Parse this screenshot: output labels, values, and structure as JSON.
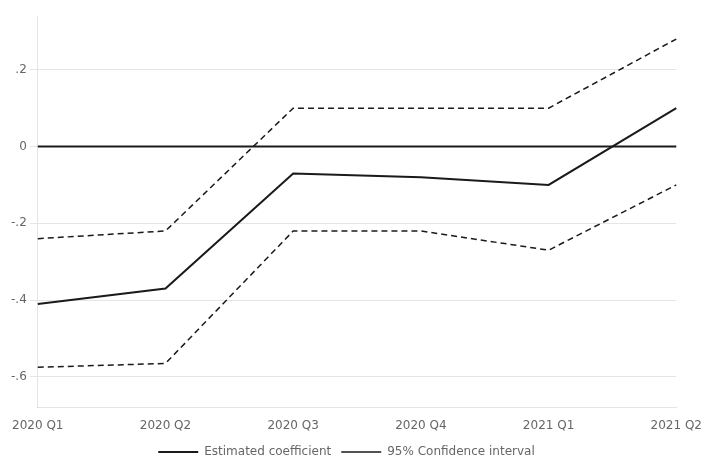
{
  "chart_data": {
    "type": "line",
    "categories": [
      "2020 Q1",
      "2020 Q2",
      "2020 Q3",
      "2020 Q4",
      "2021 Q1",
      "2021 Q2"
    ],
    "series": [
      {
        "name": "Estimated coefficient",
        "color": "#1a1a1a",
        "line_style": "solid",
        "values": [
          -0.41,
          -0.37,
          -0.07,
          -0.08,
          -0.1,
          0.1
        ]
      },
      {
        "name": "95% Confidence interval",
        "color": "#1a1a1a",
        "line_style": "dashed",
        "values": [
          -0.24,
          -0.22,
          0.1,
          0.1,
          0.1,
          0.28
        ]
      },
      {
        "name": "95% Confidence interval",
        "color": "#1a1a1a",
        "line_style": "dashed",
        "values": [
          -0.575,
          -0.565,
          -0.22,
          -0.22,
          -0.27,
          -0.1
        ]
      }
    ],
    "hline": 0.0,
    "ylim": [
      -0.68,
      0.34
    ],
    "yticks": [
      {
        "value": -0.6,
        "label": "-.6"
      },
      {
        "value": -0.4,
        "label": "-.4"
      },
      {
        "value": -0.2,
        "label": "-.2"
      },
      0,
      {
        "value": 0.2,
        "label": ".2"
      }
    ],
    "grid": "y",
    "legend": "bottom"
  }
}
